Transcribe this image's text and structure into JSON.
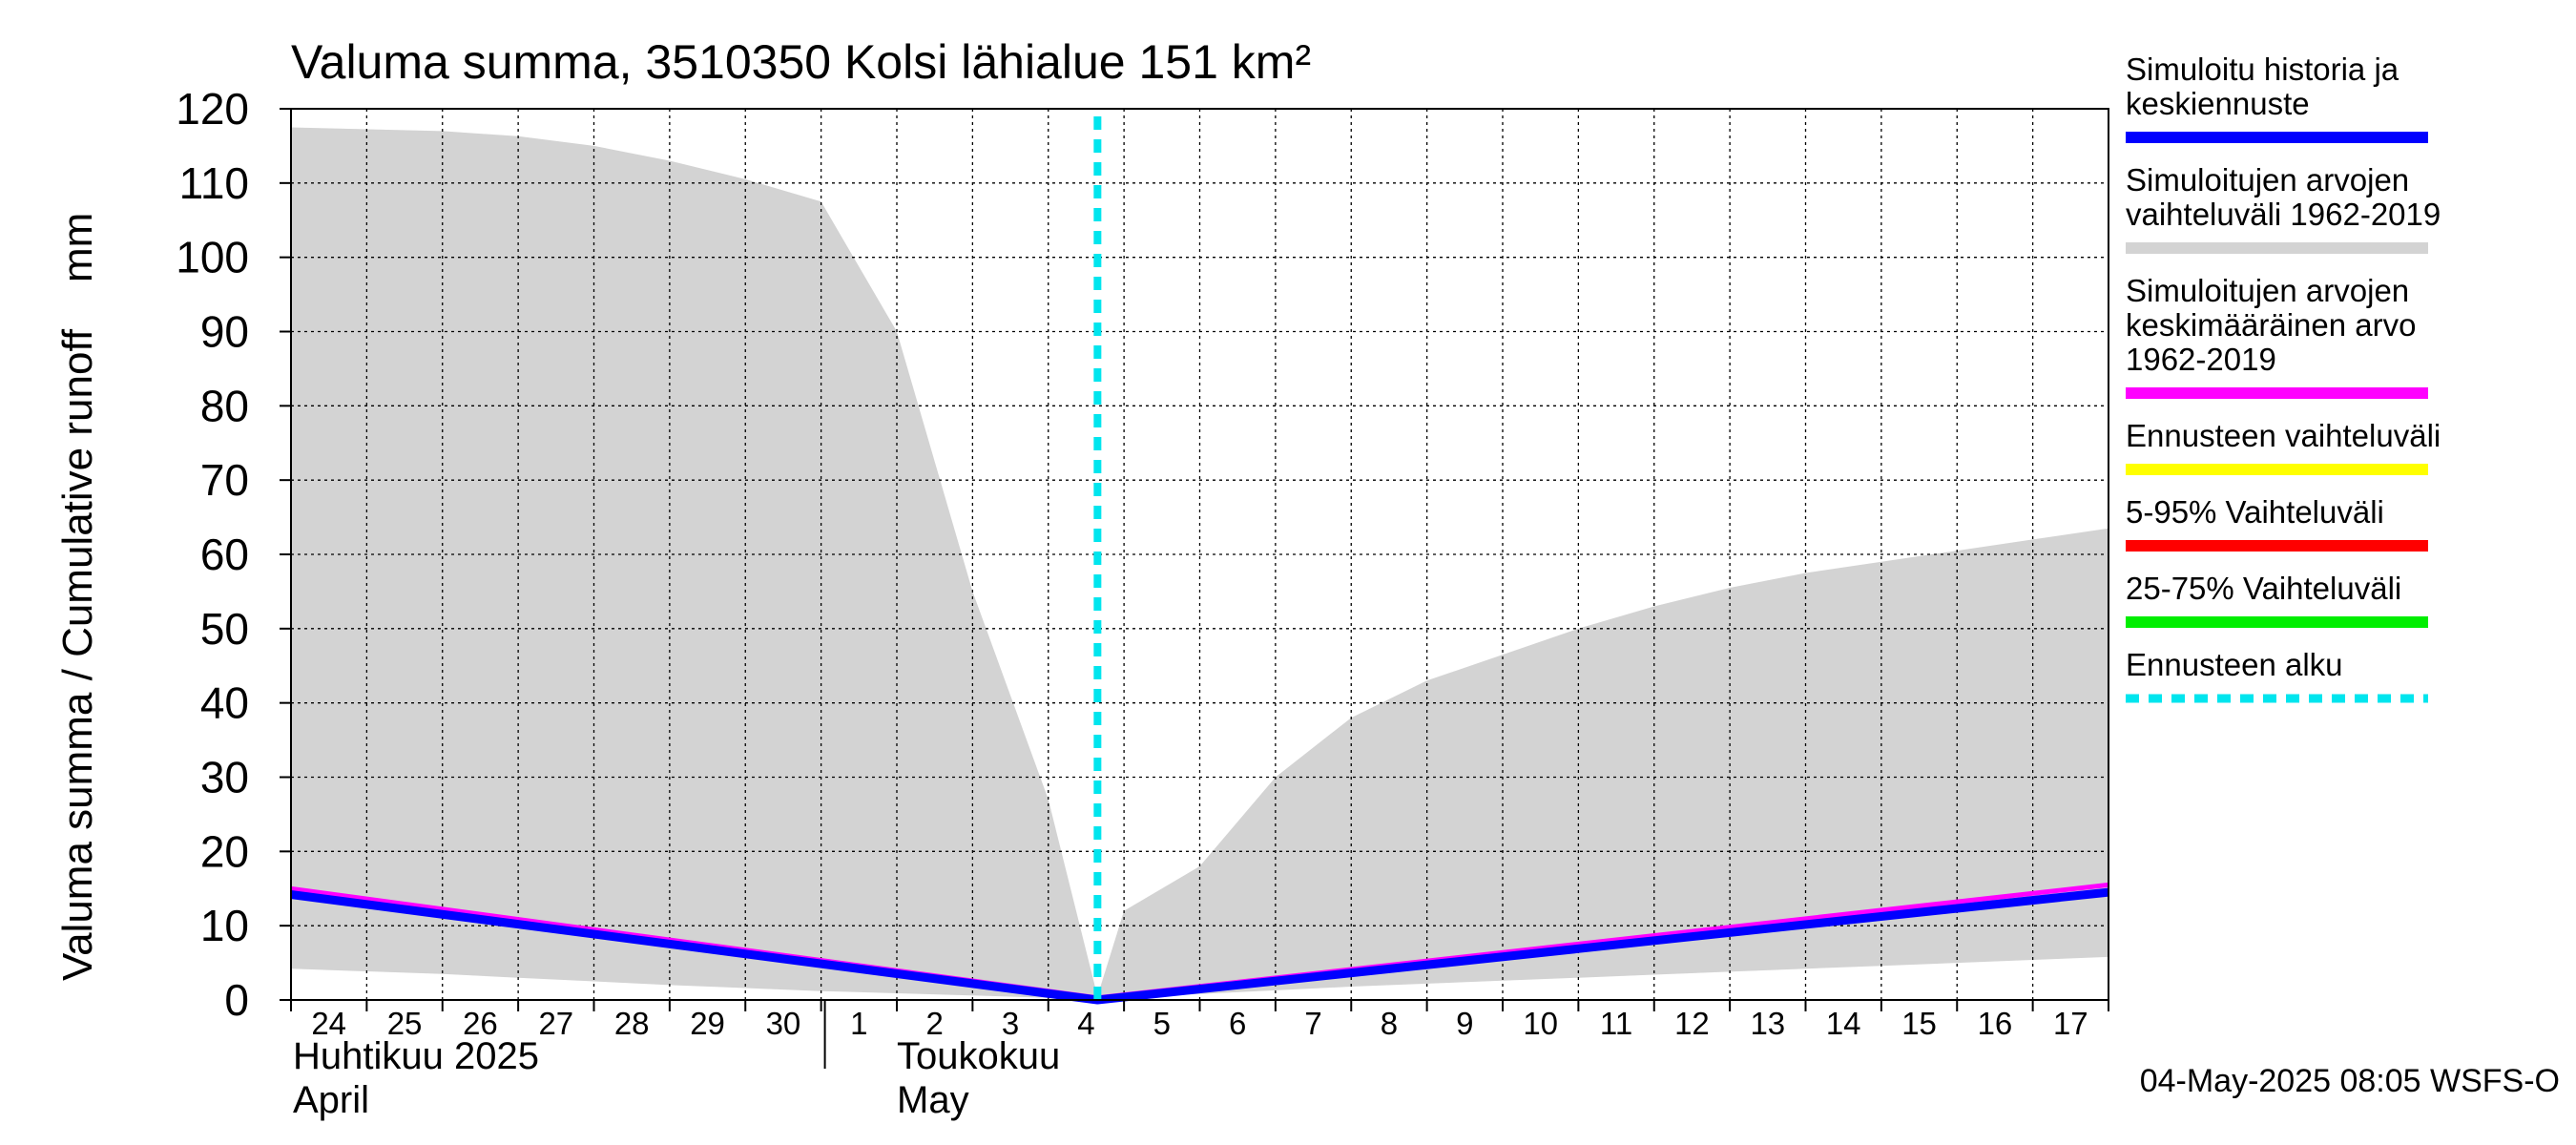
{
  "chart_data": {
    "type": "area",
    "title": "Valuma summa, 3510350 Kolsi lähialue 151 km²",
    "ylabel": "Valuma summa / Cumulative runoff    mm",
    "ylim": [
      0,
      120
    ],
    "yticks": [
      0,
      10,
      20,
      30,
      40,
      50,
      60,
      70,
      80,
      90,
      100,
      110,
      120
    ],
    "x_day_labels": [
      "24",
      "25",
      "26",
      "27",
      "28",
      "29",
      "30",
      "1",
      "2",
      "3",
      "4",
      "5",
      "6",
      "7",
      "8",
      "9",
      "10",
      "11",
      "12",
      "13",
      "14",
      "15",
      "16",
      "17"
    ],
    "x_range_days": [
      0,
      24
    ],
    "forecast_start_day": 10.65,
    "month_labels": [
      {
        "fi": "Huhtikuu  2025",
        "en": "April",
        "day": 0
      },
      {
        "fi": "Toukokuu",
        "en": "May",
        "day": 8
      }
    ],
    "month_separator_day": 7.05,
    "series": [
      {
        "name": "Simuloitujen arvojen vaihteluväli 1962-2019",
        "kind": "band",
        "color": "#d3d3d3",
        "x": [
          0,
          2,
          3,
          4,
          5,
          6,
          7,
          8,
          9,
          10,
          10.65,
          11,
          12,
          13,
          14,
          15,
          16,
          17,
          18,
          19,
          20,
          21,
          22,
          23,
          24
        ],
        "upper": [
          117.5,
          117,
          116.3,
          115,
          113,
          110.5,
          107.5,
          90,
          55,
          27,
          0.5,
          12,
          18,
          30,
          38,
          43,
          46.5,
          50,
          53,
          55.5,
          57.5,
          59,
          60.5,
          62,
          63.5
        ],
        "lower": [
          4.2,
          3.5,
          3.0,
          2.5,
          2.0,
          1.6,
          1.2,
          0.9,
          0.6,
          0.3,
          0,
          0.3,
          0.8,
          1.3,
          1.8,
          2.2,
          2.6,
          3.0,
          3.4,
          3.8,
          4.2,
          4.6,
          5.0,
          5.4,
          5.8
        ]
      },
      {
        "name": "Simuloitujen arvojen keskimääräinen arvo 1962-2019",
        "kind": "line",
        "color": "#ff00ff",
        "x": [
          0,
          10.65,
          24
        ],
        "y": [
          15.0,
          0.3,
          15.5
        ]
      },
      {
        "name": "Simuloitu historia ja keskiennuste",
        "kind": "line",
        "color": "#0000ff",
        "x": [
          0,
          10.65,
          24
        ],
        "y": [
          14.2,
          0.0,
          14.5
        ]
      }
    ],
    "legend": {
      "placement": "right",
      "entries": [
        {
          "lines": [
            "Simuloitu historia ja",
            "keskiennuste"
          ],
          "color": "#0000ff",
          "style": "solid"
        },
        {
          "lines": [
            "Simuloitujen arvojen",
            "vaihteluväli 1962-2019"
          ],
          "color": "#d3d3d3",
          "style": "solid"
        },
        {
          "lines": [
            "Simuloitujen arvojen",
            "keskimääräinen arvo",
            "   1962-2019"
          ],
          "color": "#ff00ff",
          "style": "solid"
        },
        {
          "lines": [
            "Ennusteen vaihteluväli"
          ],
          "color": "#ffff00",
          "style": "solid"
        },
        {
          "lines": [
            "5-95% Vaihteluväli"
          ],
          "color": "#ff0000",
          "style": "solid"
        },
        {
          "lines": [
            "25-75% Vaihteluväli"
          ],
          "color": "#00ee00",
          "style": "solid"
        },
        {
          "lines": [
            "Ennusteen alku"
          ],
          "color": "#00e5ee",
          "style": "dashed"
        }
      ]
    },
    "timestamp": "04-May-2025 08:05 WSFS-O",
    "grid": true
  }
}
